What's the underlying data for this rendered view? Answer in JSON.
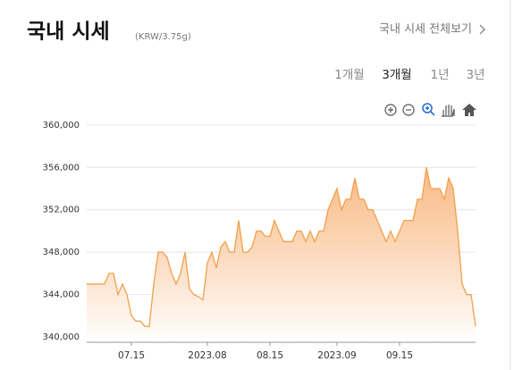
{
  "header": {
    "title": "국내 시세",
    "unit": "(KRW/3.75g)",
    "link": "국내 시세 전체보기"
  },
  "tabs": [
    "1개월",
    "3개월",
    "1년",
    "3년"
  ],
  "active_tab": 1,
  "chart_data": {
    "type": "area",
    "color": "#f4a04a",
    "categories": [
      null,
      null,
      null,
      null,
      null,
      null,
      null,
      null,
      null,
      null,
      "07.15",
      null,
      null,
      null,
      null,
      null,
      null,
      null,
      null,
      null,
      null,
      null,
      null,
      null,
      null,
      null,
      null,
      "2023.08",
      null,
      null,
      null,
      null,
      null,
      null,
      null,
      null,
      null,
      null,
      null,
      null,
      null,
      "08.15",
      null,
      null,
      null,
      null,
      null,
      null,
      null,
      null,
      null,
      null,
      null,
      null,
      null,
      null,
      "2023.09",
      null,
      null,
      null,
      null,
      null,
      null,
      null,
      null,
      null,
      null,
      null,
      null,
      null,
      "09.15",
      null,
      null,
      null,
      null,
      null,
      null,
      null,
      null,
      null,
      null,
      null,
      null,
      null,
      null,
      null,
      null,
      null
    ],
    "values": [
      345000,
      345000,
      345000,
      345000,
      345000,
      346000,
      346000,
      344000,
      345000,
      344000,
      342000,
      341500,
      341500,
      341000,
      341000,
      345000,
      348000,
      348000,
      347500,
      346000,
      345000,
      346000,
      348000,
      344500,
      344000,
      343800,
      343500,
      347000,
      348000,
      346500,
      348500,
      349000,
      348000,
      348000,
      351000,
      348000,
      348000,
      348500,
      350000,
      350000,
      349500,
      349500,
      351000,
      350000,
      349000,
      349000,
      349000,
      350000,
      350000,
      349000,
      350000,
      349000,
      350000,
      350000,
      352000,
      353000,
      354000,
      352000,
      353000,
      353000,
      355000,
      353000,
      353000,
      352000,
      352000,
      351000,
      350000,
      349000,
      350000,
      349000,
      350000,
      351000,
      351000,
      351000,
      353000,
      353000,
      356000,
      354000,
      354000,
      354000,
      353000,
      355000,
      354000,
      350000,
      345000,
      344000,
      344000,
      341000
    ],
    "ylim": [
      339500,
      361000
    ],
    "yticks": [
      {
        "value": 340000,
        "label": "340,000"
      },
      {
        "value": 344000,
        "label": "344,000"
      },
      {
        "value": 348000,
        "label": "348,000"
      },
      {
        "value": 352000,
        "label": "352,000"
      },
      {
        "value": 356000,
        "label": "356,000"
      },
      {
        "value": 360000,
        "label": "360,000"
      }
    ],
    "grid": true
  }
}
